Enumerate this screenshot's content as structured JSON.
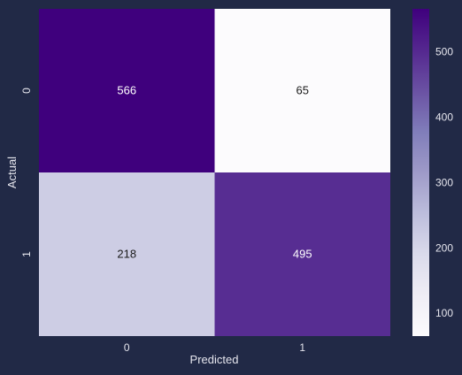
{
  "chart_data": {
    "type": "heatmap",
    "title": "",
    "xlabel": "Predicted",
    "ylabel": "Actual",
    "x_categories": [
      "0",
      "1"
    ],
    "y_categories": [
      "0",
      "1"
    ],
    "values": [
      [
        566,
        65
      ],
      [
        218,
        495
      ]
    ],
    "colorbar": {
      "ticks": [
        100,
        200,
        300,
        400,
        500
      ],
      "range": [
        65,
        566
      ],
      "colormap": "Purples"
    },
    "colors": {
      "background": "#212946",
      "label_text": "#e6e6ee",
      "cell_text_light": "#ffffff",
      "cell_text_dark": "#1a1a1a",
      "colormap_low": "#fcfbfd",
      "colormap_high": "#3f007d"
    }
  }
}
